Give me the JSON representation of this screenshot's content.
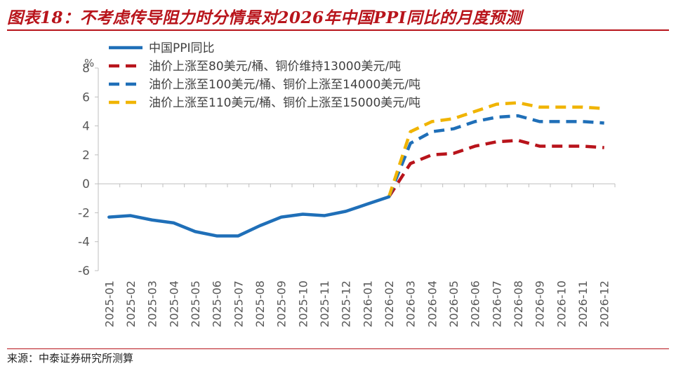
{
  "header": {
    "title": "图表18：不考虑传导阻力时分情景对2026年中国PPI同比的月度预测"
  },
  "footer": {
    "source": "来源：中泰证券研究所测算"
  },
  "chart_data": {
    "type": "line",
    "title": "图表18：不考虑传导阻力时分情景对2026年中国PPI同比的月度预测",
    "ylabel": "%",
    "xlabel": "",
    "ylim": [
      -6,
      8
    ],
    "yticks": [
      -6,
      -4,
      -2,
      0,
      2,
      4,
      6,
      8
    ],
    "grid": false,
    "legend": "top-left",
    "categories": [
      "2025-01",
      "2025-02",
      "2025-03",
      "2025-04",
      "2025-05",
      "2025-06",
      "2025-07",
      "2025-08",
      "2025-09",
      "2025-10",
      "2025-11",
      "2025-12",
      "2026-01",
      "2026-02",
      "2026-03",
      "2026-04",
      "2026-05",
      "2026-06",
      "2026-07",
      "2026-08",
      "2026-09",
      "2026-10",
      "2026-11",
      "2026-12"
    ],
    "series": [
      {
        "name": "中国PPI同比",
        "color": "#1f6fb8",
        "style": "solid",
        "values": [
          -2.3,
          -2.2,
          -2.5,
          -2.7,
          -3.3,
          -3.6,
          -3.6,
          -2.9,
          -2.3,
          -2.1,
          -2.2,
          -1.9,
          -1.4,
          -0.9,
          null,
          null,
          null,
          null,
          null,
          null,
          null,
          null,
          null,
          null
        ]
      },
      {
        "name": "油价上涨至80美元/桶、铜价维持13000美元/吨",
        "color": "#b8141b",
        "style": "dashed",
        "values": [
          null,
          null,
          null,
          null,
          null,
          null,
          null,
          null,
          null,
          null,
          null,
          null,
          null,
          -0.9,
          1.4,
          2.0,
          2.1,
          2.6,
          2.9,
          3.0,
          2.6,
          2.6,
          2.6,
          2.5
        ]
      },
      {
        "name": "油价上涨至100美元/桶、铜价上涨至14000美元/吨",
        "color": "#1f6fb8",
        "style": "dashed",
        "values": [
          null,
          null,
          null,
          null,
          null,
          null,
          null,
          null,
          null,
          null,
          null,
          null,
          null,
          -0.9,
          2.8,
          3.6,
          3.8,
          4.3,
          4.6,
          4.7,
          4.3,
          4.3,
          4.3,
          4.2
        ]
      },
      {
        "name": "油价上涨至110美元/桶、铜价上涨至15000美元/吨",
        "color": "#f0b400",
        "style": "dashed",
        "values": [
          null,
          null,
          null,
          null,
          null,
          null,
          null,
          null,
          null,
          null,
          null,
          null,
          null,
          -0.9,
          3.6,
          4.3,
          4.5,
          5.0,
          5.5,
          5.6,
          5.3,
          5.3,
          5.3,
          5.2
        ]
      }
    ]
  }
}
